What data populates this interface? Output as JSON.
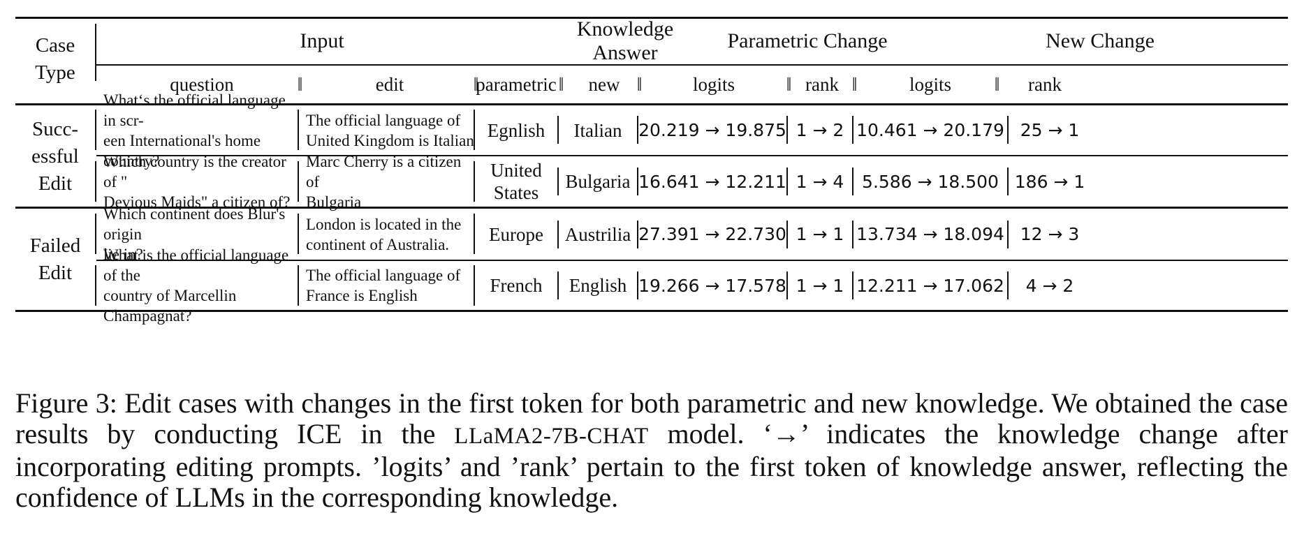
{
  "header": {
    "case_type": "Case\nType",
    "input": "Input",
    "knowledge_answer": "Knowledge Answer",
    "parametric_change": "Parametric Change",
    "new_change": "New Change",
    "question": "question",
    "edit": "edit",
    "parametric": "parametric",
    "new": "new",
    "logits": "logits",
    "rank": "rank",
    "double_bar": "‖"
  },
  "groups": [
    {
      "label": "Succ-\nessful\nEdit"
    },
    {
      "label": "Failed\nEdit"
    }
  ],
  "rows": [
    {
      "question": "What‘s the official language in scr-\neen International's home country?",
      "edit": "The official language of\nUnited Kingdom is Italian",
      "parametric": "Egnlish",
      "new": "Italian",
      "param_logits": "20.219 → 19.875",
      "param_rank": "1 → 2",
      "new_logits": "10.461 → 20.179",
      "new_rank": "25 → 1"
    },
    {
      "question": "Which country is the creator of \"\nDevious Maids\" a citizen of?",
      "edit": "Marc Cherry is a citizen of\nBulgaria",
      "parametric": "United\nStates",
      "new": "Bulgaria",
      "param_logits": "16.641 → 12.211",
      "param_rank": "1 → 4",
      "new_logits": "5.586 → 18.500",
      "new_rank": "186 → 1"
    },
    {
      "question": "Which continent does Blur's origin\nlie in?",
      "edit": "London is located in the\ncontinent of Australia.",
      "parametric": "Europe",
      "new": "Austrilia",
      "param_logits": "27.391 → 22.730",
      "param_rank": "1 → 1",
      "new_logits": "13.734 → 18.094",
      "new_rank": "12 → 3"
    },
    {
      "question": "What is the official language of the\ncountry of Marcellin Champagnat?",
      "edit": "The official language of\nFrance is English",
      "parametric": "French",
      "new": "English",
      "param_logits": "19.266 → 17.578",
      "param_rank": "1 → 1",
      "new_logits": "12.211 → 17.062",
      "new_rank": "4 → 2"
    }
  ],
  "caption": {
    "part1": "Figure 3: Edit cases with changes in the first token for both parametric and new knowledge. We obtained the case results by conducting ICE in the ",
    "model": "LLaMA2-7B-CHAT",
    "part2": " model. ‘→’ indicates the knowledge change after incorporating editing prompts. ’logits’ and ’rank’ pertain to the first token of knowledge answer, reflecting the confidence of LLMs in the corresponding knowledge."
  }
}
